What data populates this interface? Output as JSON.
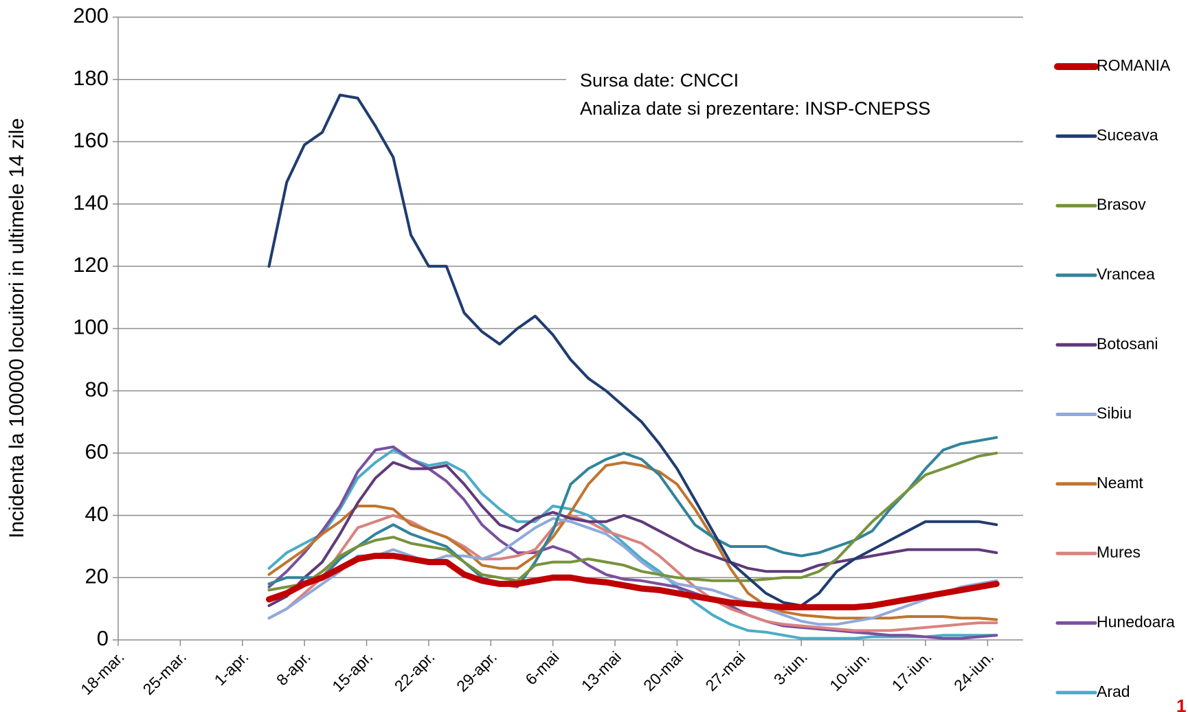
{
  "chart_data": {
    "type": "line",
    "y_label": "Incidenta la 100000 locuitori in ultimele 14 zile",
    "annotations": [
      "Sursa date: CNCCI",
      "Analiza date si prezentare: INSP-CNEPSS"
    ],
    "page_number": "1",
    "xlim": [
      0,
      102
    ],
    "xticks": [
      {
        "value": 0,
        "label": "18-mar."
      },
      {
        "value": 7,
        "label": "25-mar."
      },
      {
        "value": 14,
        "label": "1-apr."
      },
      {
        "value": 21,
        "label": "8-apr."
      },
      {
        "value": 28,
        "label": "15-apr."
      },
      {
        "value": 35,
        "label": "22-apr."
      },
      {
        "value": 42,
        "label": "29-apr."
      },
      {
        "value": 49,
        "label": "6-mai"
      },
      {
        "value": 56,
        "label": "13-mai"
      },
      {
        "value": 63,
        "label": "20-mai"
      },
      {
        "value": 70,
        "label": "27-mai"
      },
      {
        "value": 77,
        "label": "3-iun."
      },
      {
        "value": 84,
        "label": "10-iun."
      },
      {
        "value": 91,
        "label": "17-iun."
      },
      {
        "value": 98,
        "label": "24-iun."
      }
    ],
    "ylim": [
      0,
      200
    ],
    "yticks": [
      0,
      20,
      40,
      60,
      80,
      100,
      120,
      140,
      160,
      180,
      200
    ],
    "grid": true,
    "legend": "right",
    "x": [
      17,
      19,
      21,
      23,
      25,
      27,
      29,
      31,
      33,
      35,
      37,
      39,
      41,
      43,
      45,
      47,
      49,
      51,
      53,
      55,
      57,
      59,
      61,
      63,
      65,
      67,
      69,
      71,
      73,
      75,
      77,
      79,
      81,
      83,
      85,
      87,
      89,
      91,
      93,
      95,
      97,
      99
    ],
    "series": [
      {
        "name": "ROMANIA",
        "color": "#c00000",
        "width": 9,
        "values": [
          13,
          15,
          18,
          20,
          23,
          26,
          27,
          27,
          26,
          25,
          25,
          21,
          19,
          18,
          18,
          19,
          20,
          20,
          19,
          18.5,
          17.5,
          16.5,
          16,
          15,
          14,
          13,
          12,
          11.5,
          11,
          10.5,
          10.5,
          10.5,
          10.5,
          10.5,
          11,
          12,
          13,
          14,
          15,
          16,
          17,
          18
        ]
      },
      {
        "name": "Suceava",
        "color": "#1f3c70",
        "width": 4,
        "values": [
          120,
          147,
          159,
          163,
          175,
          174,
          165,
          155,
          130,
          120,
          120,
          105,
          99,
          95,
          100,
          104,
          98,
          90,
          84,
          80,
          75,
          70,
          63,
          55,
          45,
          35,
          25,
          20,
          15,
          12,
          11,
          15,
          22,
          26,
          29,
          32,
          35,
          38,
          38,
          38,
          38,
          37
        ]
      },
      {
        "name": "Brasov",
        "color": "#77933c",
        "width": 4,
        "values": [
          16,
          17,
          18,
          22,
          27,
          30,
          32,
          33,
          31,
          30,
          29,
          25,
          21,
          20,
          19,
          24,
          25,
          25,
          26,
          25,
          24,
          22,
          21,
          20,
          19.5,
          19,
          19,
          19,
          19.5,
          20,
          20,
          22,
          26,
          32,
          38,
          43,
          48,
          53,
          55,
          57,
          59,
          60
        ]
      },
      {
        "name": "Vrancea",
        "color": "#31849b",
        "width": 4,
        "values": [
          18,
          20,
          20,
          20,
          26,
          30,
          34,
          37,
          34,
          32,
          30,
          25,
          20,
          18,
          17,
          25,
          35,
          50,
          55,
          58,
          60,
          58,
          53,
          45,
          37,
          33,
          30,
          30,
          30,
          28,
          27,
          28,
          30,
          32,
          35,
          42,
          48,
          55,
          61,
          63,
          64,
          65
        ]
      },
      {
        "name": "Botosani",
        "color": "#5f3a79",
        "width": 4,
        "values": [
          11,
          14,
          20,
          25,
          34,
          44,
          52,
          57,
          55,
          55,
          56,
          50,
          43,
          37,
          35,
          39,
          41,
          39,
          38,
          38,
          40,
          38,
          35,
          32,
          29,
          27,
          25,
          23,
          22,
          22,
          22,
          24,
          25,
          26,
          27,
          28,
          29,
          29,
          29,
          29,
          29,
          28
        ]
      },
      {
        "name": "Sibiu",
        "color": "#8eaadb",
        "width": 4,
        "values": [
          7,
          10,
          14,
          18,
          22,
          27,
          27,
          29,
          27,
          25,
          27,
          27,
          26,
          28,
          32,
          36,
          39,
          38,
          36,
          34,
          30,
          25,
          21,
          18,
          17,
          16,
          14,
          12,
          10,
          8,
          6,
          5,
          5,
          6,
          7,
          9,
          11,
          13,
          15,
          17,
          18,
          19
        ]
      },
      {
        "name": "Neamt",
        "color": "#c0752e",
        "width": 4,
        "values": [
          21,
          25,
          29,
          34,
          38,
          43,
          43,
          42,
          37,
          35,
          33,
          29,
          24,
          23,
          23,
          27,
          33,
          41,
          50,
          56,
          57,
          56,
          54,
          50,
          42,
          33,
          23,
          15,
          11,
          9,
          8,
          7.5,
          7,
          7,
          7,
          7,
          7.5,
          7.5,
          7.5,
          7,
          7,
          6.5
        ]
      },
      {
        "name": "Mures",
        "color": "#d9827f",
        "width": 4,
        "values": [
          7,
          10,
          15,
          20,
          28,
          36,
          38,
          40,
          38,
          35,
          33,
          30,
          26,
          26,
          27,
          29,
          36,
          40,
          38,
          35,
          33,
          31,
          27,
          22,
          17,
          13,
          10,
          8,
          6,
          5,
          4.5,
          4,
          3.5,
          3,
          3,
          3,
          3.5,
          4,
          4.5,
          5,
          5.5,
          5.5
        ]
      },
      {
        "name": "Hunedoara",
        "color": "#7a4f9e",
        "width": 4,
        "values": [
          17,
          22,
          28,
          35,
          43,
          54,
          61,
          62,
          58,
          55,
          51,
          45,
          37,
          32,
          28,
          28,
          30,
          28,
          24,
          21,
          19.5,
          19,
          18,
          17,
          15,
          13,
          11,
          8,
          6,
          4.5,
          4,
          3.5,
          3,
          2.5,
          2,
          1.5,
          1.5,
          1,
          0.5,
          0.5,
          1,
          1.5
        ]
      },
      {
        "name": "Arad",
        "color": "#4bacc6",
        "width": 4,
        "values": [
          23,
          28,
          31,
          34,
          42,
          52,
          57,
          61,
          58,
          56,
          57,
          54,
          47,
          42,
          38,
          38,
          43,
          42,
          40,
          36,
          31,
          26,
          22,
          17,
          12,
          8,
          5,
          3,
          2.5,
          1.5,
          0.5,
          0.5,
          0.5,
          0.5,
          1,
          1,
          1,
          1,
          1.5,
          1.5,
          1.5,
          1.5
        ]
      }
    ]
  }
}
